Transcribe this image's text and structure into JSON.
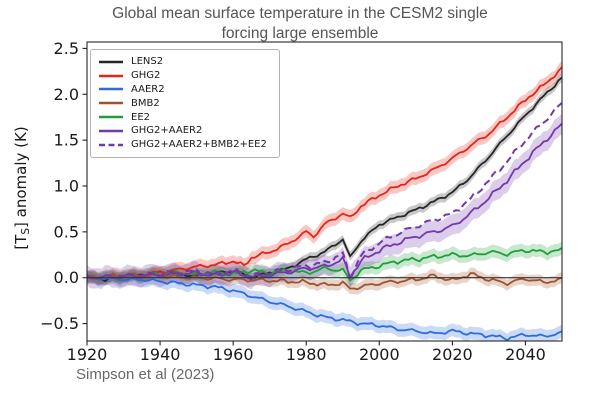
{
  "chart_data": {
    "type": "line",
    "title": "Global mean surface temperature in the CESM2 single forcing large ensemble",
    "title_lines": [
      "Global mean surface temperature in the CESM2 single",
      "forcing large ensemble"
    ],
    "source_label": "Simpson et al (2023)",
    "xlabel": "",
    "ylabel_pre": "[T",
    "ylabel_sub": "S",
    "ylabel_post": "] anomaly (K)",
    "xlim": [
      1920,
      2050
    ],
    "ylim": [
      -0.69,
      2.57
    ],
    "xticks": [
      1920,
      1940,
      1960,
      1980,
      2000,
      2020,
      2040
    ],
    "yticks": [
      2.5,
      2.0,
      1.5,
      1.0,
      0.5,
      0.0,
      -0.5
    ],
    "grid": false,
    "zero_line": true,
    "legend_position": "upper-left",
    "axis_color": "#262626",
    "tick_label_color": "#1a1a1a",
    "series": [
      {
        "name": "LENS2",
        "color": "#262626",
        "dash": false,
        "band": 0.05,
        "jitter": 0.022,
        "seed": 1,
        "anchors": [
          [
            1920,
            0.0
          ],
          [
            1925,
            -0.02
          ],
          [
            1930,
            0.02
          ],
          [
            1935,
            0.03
          ],
          [
            1940,
            0.06
          ],
          [
            1945,
            0.04
          ],
          [
            1950,
            0.02
          ],
          [
            1955,
            0.05
          ],
          [
            1960,
            0.07
          ],
          [
            1965,
            0.01
          ],
          [
            1970,
            0.05
          ],
          [
            1975,
            0.1
          ],
          [
            1980,
            0.2
          ],
          [
            1985,
            0.28
          ],
          [
            1990,
            0.42
          ],
          [
            1992,
            0.22
          ],
          [
            1995,
            0.4
          ],
          [
            2000,
            0.58
          ],
          [
            2005,
            0.66
          ],
          [
            2010,
            0.74
          ],
          [
            2015,
            0.83
          ],
          [
            2020,
            0.93
          ],
          [
            2025,
            1.1
          ],
          [
            2030,
            1.32
          ],
          [
            2035,
            1.55
          ],
          [
            2040,
            1.77
          ],
          [
            2045,
            1.98
          ],
          [
            2050,
            2.18
          ]
        ]
      },
      {
        "name": "GHG2",
        "color": "#e62519",
        "dash": false,
        "band": 0.07,
        "jitter": 0.025,
        "seed": 2,
        "anchors": [
          [
            1920,
            0.0
          ],
          [
            1925,
            0.01
          ],
          [
            1930,
            0.02
          ],
          [
            1935,
            0.03
          ],
          [
            1940,
            0.06
          ],
          [
            1945,
            0.09
          ],
          [
            1950,
            0.12
          ],
          [
            1955,
            0.14
          ],
          [
            1960,
            0.18
          ],
          [
            1963,
            0.13
          ],
          [
            1965,
            0.22
          ],
          [
            1970,
            0.28
          ],
          [
            1975,
            0.37
          ],
          [
            1980,
            0.5
          ],
          [
            1982,
            0.45
          ],
          [
            1985,
            0.58
          ],
          [
            1990,
            0.7
          ],
          [
            1992,
            0.65
          ],
          [
            1995,
            0.78
          ],
          [
            2000,
            0.9
          ],
          [
            2005,
            1.0
          ],
          [
            2010,
            1.08
          ],
          [
            2015,
            1.18
          ],
          [
            2020,
            1.3
          ],
          [
            2025,
            1.44
          ],
          [
            2030,
            1.57
          ],
          [
            2035,
            1.75
          ],
          [
            2040,
            1.94
          ],
          [
            2045,
            2.1
          ],
          [
            2050,
            2.28
          ]
        ]
      },
      {
        "name": "AAER2",
        "color": "#2d6cde",
        "dash": false,
        "band": 0.07,
        "jitter": 0.025,
        "seed": 3,
        "anchors": [
          [
            1920,
            0.0
          ],
          [
            1925,
            -0.01
          ],
          [
            1930,
            -0.02
          ],
          [
            1935,
            -0.02
          ],
          [
            1940,
            -0.04
          ],
          [
            1945,
            -0.06
          ],
          [
            1950,
            -0.08
          ],
          [
            1955,
            -0.1
          ],
          [
            1960,
            -0.14
          ],
          [
            1965,
            -0.2
          ],
          [
            1970,
            -0.26
          ],
          [
            1975,
            -0.31
          ],
          [
            1980,
            -0.37
          ],
          [
            1985,
            -0.43
          ],
          [
            1990,
            -0.46
          ],
          [
            1995,
            -0.5
          ],
          [
            2000,
            -0.52
          ],
          [
            2005,
            -0.56
          ],
          [
            2010,
            -0.58
          ],
          [
            2015,
            -0.61
          ],
          [
            2020,
            -0.58
          ],
          [
            2025,
            -0.61
          ],
          [
            2030,
            -0.63
          ],
          [
            2035,
            -0.66
          ],
          [
            2040,
            -0.62
          ],
          [
            2045,
            -0.64
          ],
          [
            2050,
            -0.6
          ]
        ]
      },
      {
        "name": "BMB2",
        "color": "#a0522d",
        "dash": false,
        "band": 0.06,
        "jitter": 0.028,
        "seed": 4,
        "anchors": [
          [
            1920,
            0.0
          ],
          [
            1930,
            0.01
          ],
          [
            1940,
            0.02
          ],
          [
            1950,
            0.0
          ],
          [
            1960,
            -0.02
          ],
          [
            1970,
            -0.03
          ],
          [
            1980,
            -0.05
          ],
          [
            1985,
            -0.08
          ],
          [
            1990,
            -0.06
          ],
          [
            1992,
            -0.12
          ],
          [
            1995,
            -0.1
          ],
          [
            2000,
            -0.06
          ],
          [
            2005,
            -0.04
          ],
          [
            2010,
            -0.02
          ],
          [
            2015,
            0.02
          ],
          [
            2020,
            -0.03
          ],
          [
            2025,
            0.04
          ],
          [
            2030,
            -0.02
          ],
          [
            2035,
            -0.06
          ],
          [
            2040,
            -0.01
          ],
          [
            2045,
            -0.05
          ],
          [
            2050,
            -0.02
          ]
        ]
      },
      {
        "name": "EE2",
        "color": "#1f9e3b",
        "dash": false,
        "band": 0.07,
        "jitter": 0.03,
        "seed": 5,
        "anchors": [
          [
            1920,
            0.0
          ],
          [
            1930,
            0.01
          ],
          [
            1940,
            0.04
          ],
          [
            1945,
            0.06
          ],
          [
            1950,
            0.03
          ],
          [
            1955,
            0.06
          ],
          [
            1960,
            0.04
          ],
          [
            1965,
            0.08
          ],
          [
            1970,
            0.05
          ],
          [
            1975,
            0.08
          ],
          [
            1980,
            0.05
          ],
          [
            1985,
            0.1
          ],
          [
            1990,
            0.08
          ],
          [
            1992,
            -0.03
          ],
          [
            1995,
            0.08
          ],
          [
            2000,
            0.13
          ],
          [
            2005,
            0.18
          ],
          [
            2010,
            0.2
          ],
          [
            2015,
            0.23
          ],
          [
            2020,
            0.25
          ],
          [
            2025,
            0.24
          ],
          [
            2030,
            0.28
          ],
          [
            2035,
            0.26
          ],
          [
            2040,
            0.3
          ],
          [
            2045,
            0.28
          ],
          [
            2050,
            0.3
          ]
        ]
      },
      {
        "name": "GHG2+AAER2",
        "color": "#7339ab",
        "dash": false,
        "band": 0.11,
        "jitter": 0.034,
        "seed": 6,
        "anchors": [
          [
            1920,
            0.0
          ],
          [
            1930,
            0.01
          ],
          [
            1940,
            0.03
          ],
          [
            1950,
            0.05
          ],
          [
            1955,
            0.02
          ],
          [
            1960,
            0.06
          ],
          [
            1965,
            0.0
          ],
          [
            1970,
            0.03
          ],
          [
            1975,
            0.06
          ],
          [
            1980,
            0.1
          ],
          [
            1985,
            0.12
          ],
          [
            1990,
            0.2
          ],
          [
            1992,
            0.02
          ],
          [
            1995,
            0.18
          ],
          [
            2000,
            0.3
          ],
          [
            2005,
            0.38
          ],
          [
            2010,
            0.45
          ],
          [
            2015,
            0.5
          ],
          [
            2020,
            0.56
          ],
          [
            2025,
            0.7
          ],
          [
            2030,
            0.87
          ],
          [
            2035,
            1.06
          ],
          [
            2040,
            1.28
          ],
          [
            2045,
            1.48
          ],
          [
            2050,
            1.67
          ]
        ]
      },
      {
        "name": "GHG2+AAER2+BMB2+EE2",
        "color": "#7339ab",
        "dash": true,
        "band": 0,
        "jitter": 0.034,
        "seed": 7,
        "anchors": [
          [
            1920,
            0.0
          ],
          [
            1930,
            0.02
          ],
          [
            1940,
            0.05
          ],
          [
            1950,
            0.07
          ],
          [
            1955,
            0.04
          ],
          [
            1960,
            0.08
          ],
          [
            1965,
            0.02
          ],
          [
            1970,
            0.06
          ],
          [
            1975,
            0.09
          ],
          [
            1980,
            0.13
          ],
          [
            1985,
            0.16
          ],
          [
            1990,
            0.26
          ],
          [
            1992,
            0.0
          ],
          [
            1995,
            0.24
          ],
          [
            2000,
            0.38
          ],
          [
            2005,
            0.48
          ],
          [
            2010,
            0.56
          ],
          [
            2015,
            0.63
          ],
          [
            2020,
            0.7
          ],
          [
            2025,
            0.86
          ],
          [
            2030,
            1.06
          ],
          [
            2035,
            1.27
          ],
          [
            2040,
            1.5
          ],
          [
            2045,
            1.7
          ],
          [
            2050,
            1.9
          ]
        ]
      }
    ]
  }
}
